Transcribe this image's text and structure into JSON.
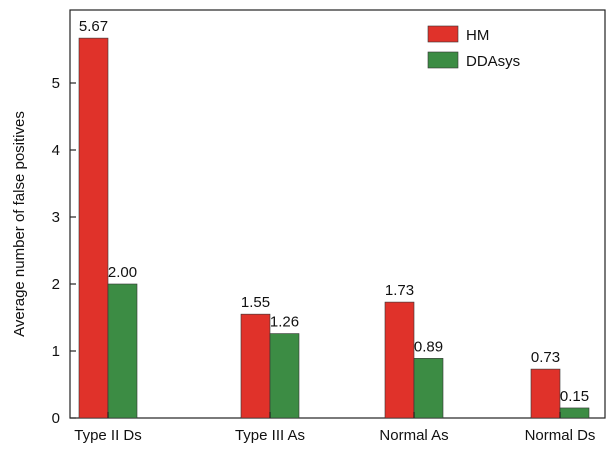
{
  "chart_data": {
    "type": "bar",
    "title": "",
    "xlabel": "",
    "ylabel": "Average number of false positives",
    "categories": [
      "Type II Ds",
      "Type III As",
      "Normal As",
      "Normal Ds"
    ],
    "series": [
      {
        "name": "HM",
        "values": [
          5.67,
          1.55,
          1.73,
          0.73
        ],
        "labels": [
          "5.67",
          "1.55",
          "1.73",
          "0.73"
        ],
        "color": "#e0322a"
      },
      {
        "name": "DDAsys",
        "values": [
          2.0,
          1.26,
          0.89,
          0.15
        ],
        "labels": [
          "2.00",
          "1.26",
          "0.89",
          "0.15"
        ],
        "color": "#3c8c44"
      }
    ],
    "ylim": [
      0,
      6
    ],
    "yticks": [
      0,
      1,
      2,
      3,
      4,
      5
    ],
    "grid": false,
    "legend_position": "top-right"
  }
}
